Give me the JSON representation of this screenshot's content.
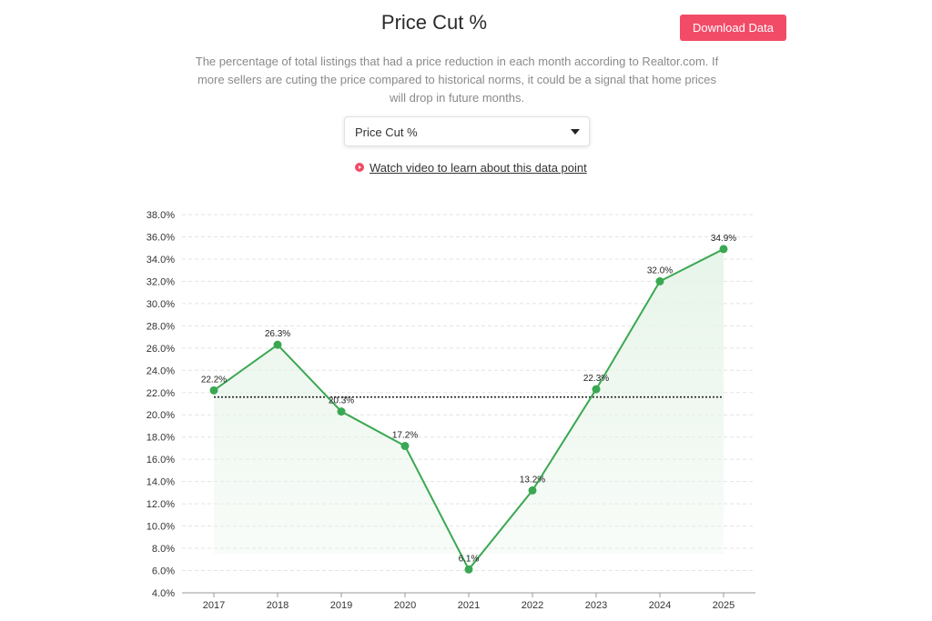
{
  "header": {
    "title": "Price Cut %",
    "download_label": "Download Data"
  },
  "description": "The percentage of total listings that had a price reduction in each month according to Realtor.com. If more sellers are cuting the price compared to historical norms, it could be a signal that home prices will drop in future months.",
  "metric_select": {
    "value": "Price Cut %"
  },
  "video_link": {
    "label": "Watch video to learn about this data point",
    "icon": "play-circle-icon"
  },
  "colors": {
    "accent": "#f24b68",
    "line": "#3aa852",
    "area": "#e6f4e8",
    "reference_line": "#222222"
  },
  "chart_data": {
    "type": "area",
    "title": "",
    "xlabel": "",
    "ylabel": "",
    "categories": [
      "2017",
      "2018",
      "2019",
      "2020",
      "2021",
      "2022",
      "2023",
      "2024",
      "2025"
    ],
    "series": [
      {
        "values": [
          22.2,
          26.3,
          20.3,
          17.2,
          6.1,
          13.2,
          22.3,
          32.0,
          34.9
        ],
        "labels": [
          "22.2%",
          "26.3%",
          "20.3%",
          "17.2%",
          "6.1%",
          "13.2%",
          "22.3%",
          "32.0%",
          "34.9%"
        ]
      }
    ],
    "reference_line": {
      "value": 21.6,
      "style": "dotted"
    },
    "ylim": [
      4,
      38
    ],
    "yticks": [
      4,
      6,
      8,
      10,
      12,
      14,
      16,
      18,
      20,
      22,
      24,
      26,
      28,
      30,
      32,
      34,
      36,
      38
    ],
    "ytick_labels": [
      "4.0%",
      "6.0%",
      "8.0%",
      "10.0%",
      "12.0%",
      "14.0%",
      "16.0%",
      "18.0%",
      "20.0%",
      "22.0%",
      "24.0%",
      "26.0%",
      "28.0%",
      "30.0%",
      "32.0%",
      "34.0%",
      "36.0%",
      "38.0%"
    ],
    "grid": true,
    "legend": "none"
  }
}
